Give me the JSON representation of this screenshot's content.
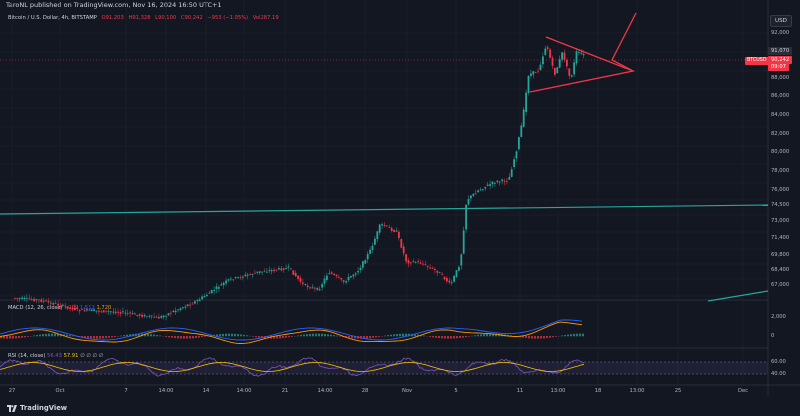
{
  "header": {
    "publisher": "TaroNL published on TradingView.com, Nov 16, 2024 16:50 UTC+1"
  },
  "legend": {
    "title": "Bitcoin / U.S. Dollar, 4h, BITSTAMP",
    "open": "O91,203",
    "high": "H91,328",
    "low": "L90,100",
    "close": "C90,242",
    "change": "−953 (−1.05%)",
    "volume": "Vol287.19"
  },
  "currency_button": "USD",
  "price_axis": {
    "ticks": [
      "92,000",
      "90,000",
      "88,000",
      "86,000",
      "84,000",
      "82,000",
      "80,000",
      "78,000",
      "76,000",
      "74,500",
      "73,000",
      "71,400",
      "69,800",
      "68,400",
      "67,000"
    ],
    "high_tag": "91,070",
    "close_tag": "90,242",
    "countdown_tag": "09:07",
    "symbol_tag": "BTCUSD"
  },
  "macd": {
    "label": "MACD (12, 26, close)",
    "hist": "−209",
    "macd": "1,512",
    "signal": "1,720",
    "ticks": [
      "2,000",
      "0"
    ]
  },
  "rsi": {
    "label": "RSI (14, close)",
    "value": "56.43",
    "ma": "57.91",
    "extra": "∅ ∅ ∅ ∅",
    "ticks": [
      "60.00",
      "40.00"
    ]
  },
  "time_axis": [
    "27",
    "Oct",
    "7",
    "14:00",
    "14",
    "14:00",
    "21",
    "14:00",
    "28",
    "Nov",
    "5",
    "11",
    "13:00",
    "18",
    "13:00",
    "25",
    "Dec"
  ],
  "footer": {
    "brand": "TradingView"
  },
  "colors": {
    "background": "#131722",
    "bull": "#26a69a",
    "bear": "#f23645",
    "annotation": "#f23645",
    "trendline": "#26a69a",
    "macd_line": "#2962ff",
    "signal_line": "#ff9800",
    "rsi_line": "#7e57c2",
    "rsi_ma": "#f7c300"
  },
  "icons": [
    "tradingview-logo-icon"
  ]
}
